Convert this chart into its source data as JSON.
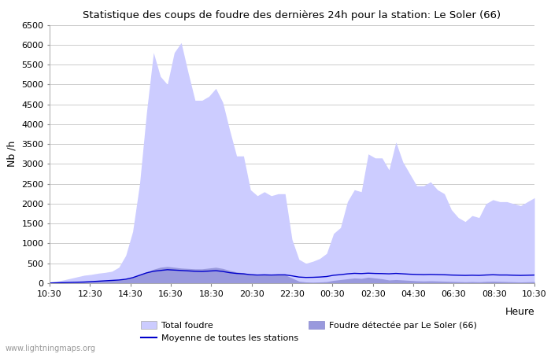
{
  "title": "Statistique des coups de foudre des dernières 24h pour la station: Le Soler (66)",
  "xlabel": "Heure",
  "ylabel": "Nb /h",
  "watermark": "www.lightningmaps.org",
  "ylim": [
    0,
    6500
  ],
  "yticks": [
    0,
    500,
    1000,
    1500,
    2000,
    2500,
    3000,
    3500,
    4000,
    4500,
    5000,
    5500,
    6000,
    6500
  ],
  "x_labels": [
    "10:30",
    "12:30",
    "14:30",
    "16:30",
    "18:30",
    "20:30",
    "22:30",
    "00:30",
    "02:30",
    "04:30",
    "06:30",
    "08:30",
    "10:30"
  ],
  "total_foudre_color": "#ccccff",
  "local_foudre_color": "#9999dd",
  "mean_line_color": "#0000cc",
  "background_color": "#ffffff",
  "grid_color": "#cccccc",
  "total_foudre": [
    30,
    50,
    80,
    120,
    160,
    200,
    220,
    250,
    270,
    300,
    400,
    700,
    1300,
    2500,
    4300,
    5800,
    5200,
    5000,
    5800,
    6050,
    5300,
    4600,
    4600,
    4700,
    4900,
    4550,
    3850,
    3200,
    3200,
    2350,
    2200,
    2300,
    2200,
    2250,
    2250,
    1100,
    600,
    500,
    550,
    620,
    750,
    1250,
    1400,
    2050,
    2350,
    2300,
    3250,
    3150,
    3150,
    2850,
    3550,
    3050,
    2750,
    2450,
    2450,
    2550,
    2350,
    2250,
    1850,
    1650,
    1550,
    1700,
    1650,
    2000,
    2100,
    2050,
    2050,
    2000,
    1950,
    2050,
    2150
  ],
  "local_foudre": [
    5,
    10,
    15,
    20,
    25,
    30,
    40,
    50,
    60,
    70,
    80,
    100,
    150,
    220,
    280,
    350,
    400,
    420,
    400,
    380,
    370,
    360,
    360,
    380,
    400,
    370,
    320,
    280,
    260,
    220,
    200,
    210,
    200,
    210,
    210,
    130,
    50,
    30,
    25,
    30,
    40,
    70,
    90,
    110,
    130,
    120,
    150,
    130,
    110,
    80,
    90,
    80,
    70,
    60,
    55,
    60,
    55,
    50,
    45,
    40,
    35,
    40,
    35,
    45,
    50,
    45,
    40,
    35,
    30,
    35,
    40
  ],
  "mean_line": [
    5,
    10,
    15,
    20,
    25,
    30,
    40,
    50,
    60,
    70,
    80,
    100,
    140,
    200,
    260,
    300,
    320,
    340,
    330,
    320,
    310,
    300,
    295,
    305,
    315,
    295,
    265,
    245,
    235,
    215,
    205,
    210,
    205,
    210,
    210,
    185,
    155,
    145,
    148,
    155,
    168,
    200,
    215,
    235,
    248,
    242,
    252,
    245,
    242,
    236,
    246,
    236,
    226,
    220,
    216,
    220,
    216,
    212,
    205,
    200,
    196,
    200,
    196,
    206,
    212,
    206,
    206,
    200,
    196,
    200,
    205
  ]
}
